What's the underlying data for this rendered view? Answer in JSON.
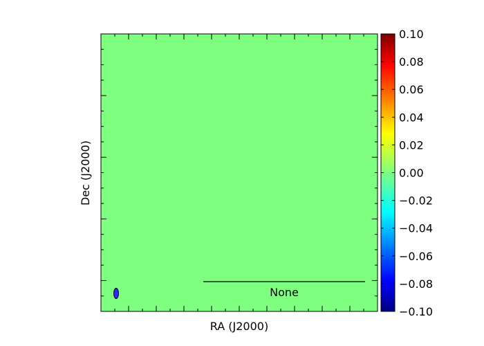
{
  "chart_data": {
    "type": "heatmap",
    "title": "",
    "xlabel": "RA (J2000)",
    "ylabel": "Dec (J2000)",
    "image_value": 0.0,
    "colormap": "jet",
    "colorbar": {
      "range": [
        -0.1,
        0.1
      ],
      "ticks": [
        0.1,
        0.08,
        0.06,
        0.04,
        0.02,
        0.0,
        -0.02,
        -0.04,
        -0.06,
        -0.08,
        -0.1
      ],
      "tick_labels": [
        "0.10",
        "0.08",
        "0.06",
        "0.04",
        "0.02",
        "0.00",
        "−0.02",
        "−0.04",
        "−0.06",
        "−0.08",
        "−0.10"
      ]
    },
    "scalebar": {
      "label": "None"
    },
    "beam": {
      "color": "#2a2aff"
    },
    "grid": false
  }
}
